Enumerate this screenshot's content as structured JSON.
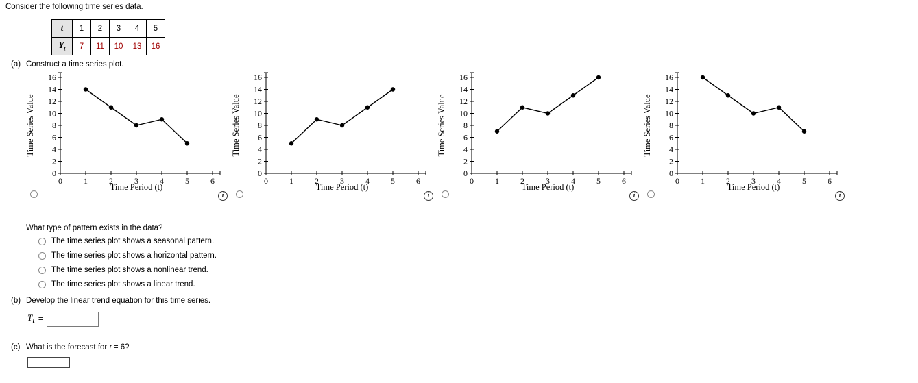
{
  "page": {
    "intro": "Consider the following time series data.",
    "parts": {
      "a": {
        "label": "(a)",
        "text": "Construct a time series plot."
      },
      "b": {
        "label": "(b)",
        "text": "Develop the linear trend equation for this time series."
      },
      "c": {
        "label": "(c)",
        "text_parts": [
          "What is the forecast for ",
          "t",
          " = 6?"
        ]
      }
    },
    "pattern_question": "What type of pattern exists in the data?",
    "pattern_options": [
      "The time series plot shows a seasonal pattern.",
      "The time series plot shows a horizontal pattern.",
      "The time series plot shows a nonlinear trend.",
      "The time series plot shows a linear trend."
    ],
    "trend_equation_label": {
      "base": "T",
      "sub": "t",
      "equals": "="
    }
  },
  "table": {
    "t_row": {
      "label": "t",
      "values": [
        "1",
        "2",
        "3",
        "4",
        "5"
      ]
    },
    "y_row": {
      "label_base": "Y",
      "label_sub": "t",
      "values": [
        "7",
        "11",
        "10",
        "13",
        "16"
      ]
    }
  },
  "icons": {
    "info_glyph": "i"
  },
  "colors": {
    "answer_value_red": "#a00000",
    "table_header_bg": "#e4e4e4",
    "plot_ink": "#000000"
  },
  "chart_data": [
    {
      "type": "line",
      "x": [
        1,
        2,
        3,
        4,
        5
      ],
      "y": [
        14,
        11,
        8,
        9,
        5
      ],
      "xlabel": "Time Period (t)",
      "ylabel": "Time Series Value",
      "xlim": [
        0,
        6
      ],
      "ylim": [
        0,
        16
      ],
      "xticks": [
        0,
        1,
        2,
        3,
        4,
        5,
        6
      ],
      "yticks": [
        0,
        2,
        4,
        6,
        8,
        10,
        12,
        14,
        16
      ],
      "grid": false,
      "legend": "none"
    },
    {
      "type": "line",
      "x": [
        1,
        2,
        3,
        4,
        5
      ],
      "y": [
        5,
        9,
        8,
        11,
        14
      ],
      "xlabel": "Time Period (t)",
      "ylabel": "Time Series Value",
      "xlim": [
        0,
        6
      ],
      "ylim": [
        0,
        16
      ],
      "xticks": [
        0,
        1,
        2,
        3,
        4,
        5,
        6
      ],
      "yticks": [
        0,
        2,
        4,
        6,
        8,
        10,
        12,
        14,
        16
      ],
      "grid": false,
      "legend": "none"
    },
    {
      "type": "line",
      "x": [
        1,
        2,
        3,
        4,
        5
      ],
      "y": [
        7,
        11,
        10,
        13,
        16
      ],
      "xlabel": "Time Period (t)",
      "ylabel": "Time Series Value",
      "xlim": [
        0,
        6
      ],
      "ylim": [
        0,
        16
      ],
      "xticks": [
        0,
        1,
        2,
        3,
        4,
        5,
        6
      ],
      "yticks": [
        0,
        2,
        4,
        6,
        8,
        10,
        12,
        14,
        16
      ],
      "grid": false,
      "legend": "none"
    },
    {
      "type": "line",
      "x": [
        1,
        2,
        3,
        4,
        5
      ],
      "y": [
        16,
        13,
        10,
        11,
        7
      ],
      "xlabel": "Time Period (t)",
      "ylabel": "Time Series Value",
      "xlim": [
        0,
        6
      ],
      "ylim": [
        0,
        16
      ],
      "xticks": [
        0,
        1,
        2,
        3,
        4,
        5,
        6
      ],
      "yticks": [
        0,
        2,
        4,
        6,
        8,
        10,
        12,
        14,
        16
      ],
      "grid": false,
      "legend": "none"
    }
  ]
}
